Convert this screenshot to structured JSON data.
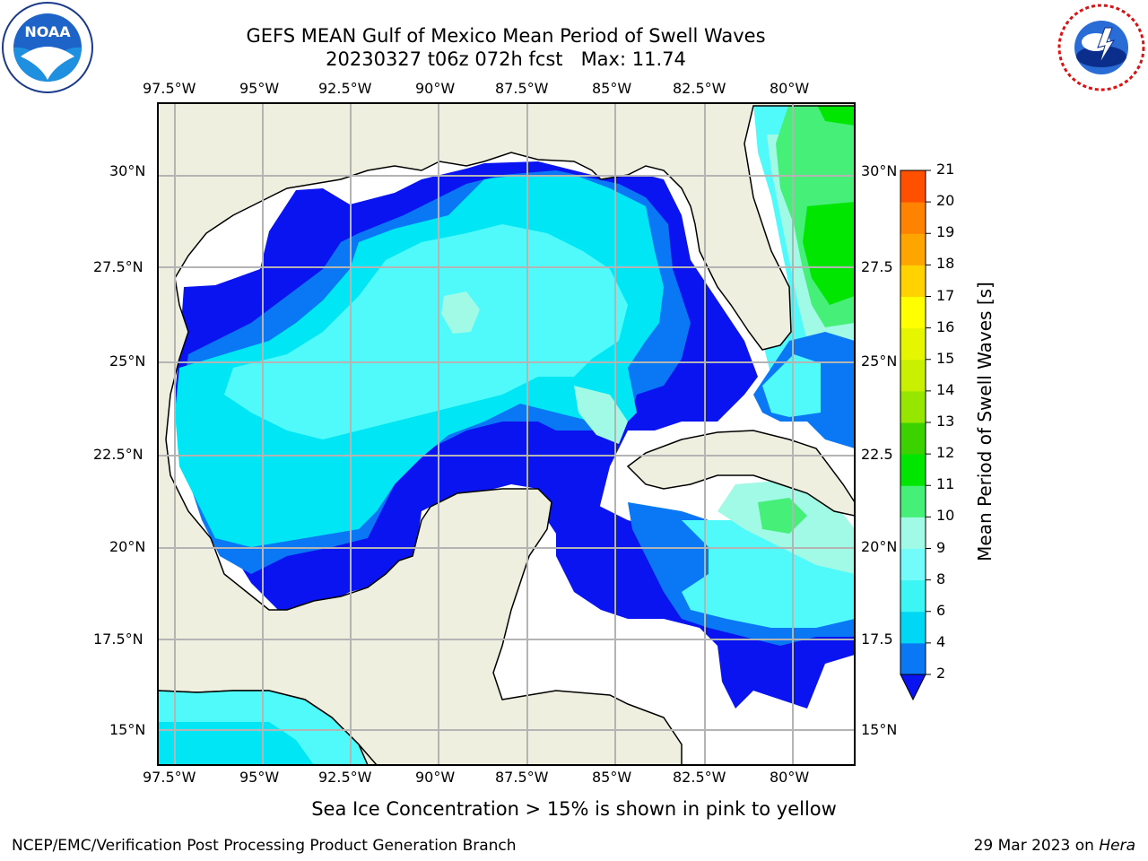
{
  "title_line1": "GEFS MEAN Gulf of Mexico Mean Period of Swell Waves",
  "title_line2": "20230327 t06z 072h fcst   Max: 11.74",
  "lon_labels": [
    "97.5°W",
    "95°W",
    "92.5°W",
    "90°W",
    "87.5°W",
    "85°W",
    "82.5°W",
    "80°W"
  ],
  "lat_labels_left": [
    "30°N",
    "27.5°N",
    "25°N",
    "22.5°N",
    "20°N",
    "17.5°N",
    "15°N"
  ],
  "lat_labels_right": [
    "30°N",
    "27.5",
    "25°N",
    "22.5",
    "20°N",
    "17.5",
    "15°N"
  ],
  "colorbar": {
    "label": "Mean Period of Swell Waves [s]",
    "ticks": [
      "2",
      "4",
      "6",
      "8",
      "9",
      "10",
      "11",
      "12",
      "13",
      "14",
      "15",
      "16",
      "17",
      "18",
      "19",
      "20",
      "21"
    ],
    "colors": [
      "#0a78f5",
      "#00d7f5",
      "#3cf5f5",
      "#73fafa",
      "#a0fae6",
      "#46f078",
      "#00e600",
      "#3cd200",
      "#96e600",
      "#c8f000",
      "#e6f500",
      "#ffff00",
      "#ffd200",
      "#ffa500",
      "#ff8200",
      "#ff5000",
      "#ff1e00"
    ],
    "extend_color": "#0a14f0"
  },
  "subtitle": "Sea Ice Concentration > 15% is shown in pink to yellow",
  "footer_left": "NCEP/EMC/Verification Post Processing Product Generation Branch",
  "footer_right_prefix": "29 Mar 2023 on ",
  "footer_right_host": "Hera",
  "colors": {
    "land": "#efefdf",
    "grid": "#b4b4b4",
    "deep_blue": "#0a14f0",
    "blue": "#0a78f5",
    "cyan": "#00e6f5",
    "light_cyan": "#50fafa",
    "pale": "#a0fae6",
    "green": "#46f078",
    "bright_green": "#00e600"
  }
}
